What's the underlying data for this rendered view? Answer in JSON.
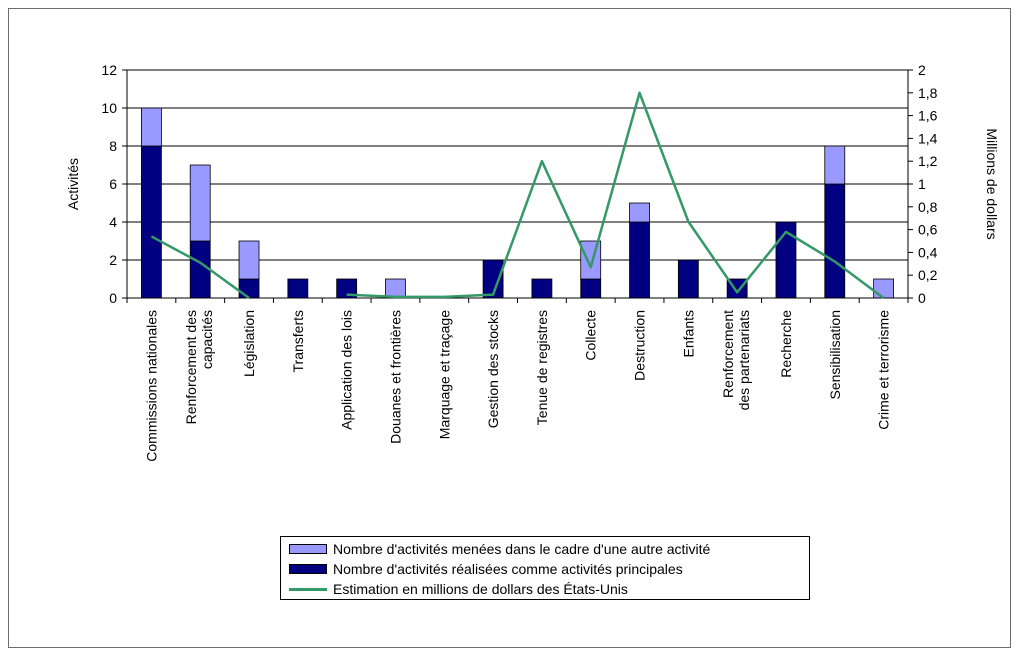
{
  "chart_data": {
    "type": "bar",
    "stacked": true,
    "categories": [
      "Commissions nationales",
      "Renforcement des capacités",
      "Législation",
      "Transferts",
      "Application des lois",
      "Douanes et frontières",
      "Marquage et traçage",
      "Gestion des stocks",
      "Tenue de registres",
      "Collecte",
      "Destruction",
      "Enfants",
      "Renforcement des partenariats",
      "Recherche",
      "Sensibilisation",
      "Crime et terrorisme"
    ],
    "series": [
      {
        "name": "Nombre d'activités réalisées comme activités principales",
        "type": "bar",
        "axis": "left",
        "color": "#000080",
        "values": [
          8,
          3,
          1,
          1,
          1,
          0,
          0,
          2,
          1,
          1,
          4,
          2,
          1,
          4,
          6,
          0
        ]
      },
      {
        "name": "Nombre d'activités menées dans le cadre d'une autre activité",
        "type": "bar",
        "axis": "left",
        "color": "#9999ff",
        "values": [
          2,
          4,
          2,
          0,
          0,
          1,
          0,
          0,
          0,
          2,
          1,
          0,
          0,
          0,
          2,
          1
        ]
      },
      {
        "name": "Estimation en millions de dollars des États-Unis",
        "type": "line",
        "axis": "right",
        "color": "#339966",
        "values": [
          0.54,
          0.31,
          0,
          null,
          0.03,
          0.01,
          0.01,
          0.03,
          1.2,
          0.27,
          1.8,
          0.67,
          0.05,
          0.58,
          0.32,
          0
        ]
      }
    ],
    "ylabel": "Activités",
    "y2label": "Millions de dollars",
    "ylim": [
      0,
      12
    ],
    "y2lim": [
      0,
      2
    ],
    "yticks": [
      "0",
      "2",
      "4",
      "6",
      "8",
      "10",
      "12"
    ],
    "y2ticks": [
      "0",
      "0,2",
      "0,4",
      "0,6",
      "0,8",
      "1",
      "1,2",
      "1,4",
      "1,6",
      "1,8",
      "2"
    ],
    "grid": true,
    "legend_position": "bottom",
    "legend": [
      {
        "label": "Nombre d'activités menées dans le cadre d'une autre activité",
        "color": "#9999ff",
        "kind": "bar"
      },
      {
        "label": "Nombre d'activités réalisées comme activités principales",
        "color": "#000080",
        "kind": "bar"
      },
      {
        "label": "Estimation en millions de dollars des États-Unis",
        "color": "#339966",
        "kind": "line"
      }
    ]
  }
}
